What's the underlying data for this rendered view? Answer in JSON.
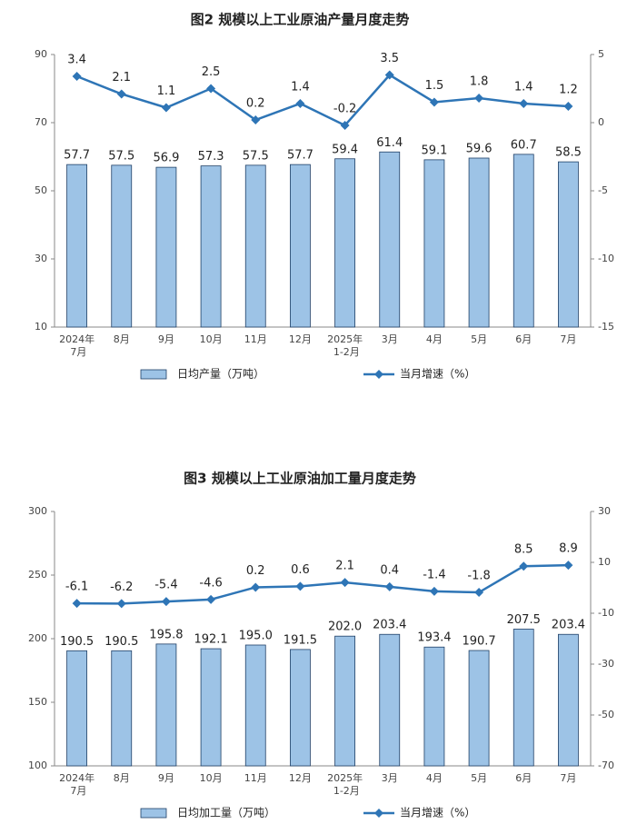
{
  "chart_data": [
    {
      "type": "bar",
      "title": "图2  规模以上工业原油产量月度走势",
      "categories": [
        "2024年\n7月",
        "8月",
        "9月",
        "10月",
        "11月",
        "12月",
        "2025年\n1-2月",
        "3月",
        "4月",
        "5月",
        "6月",
        "7月"
      ],
      "series": [
        {
          "name": "日均产量（万吨）",
          "type": "bar",
          "color": "#9dc3e6",
          "values": [
            57.7,
            57.5,
            56.9,
            57.3,
            57.5,
            57.7,
            59.4,
            61.4,
            59.1,
            59.6,
            60.7,
            58.5
          ]
        },
        {
          "name": "当月增速（%）",
          "type": "line",
          "axis": "y2",
          "color": "#2e75b6",
          "values": [
            3.4,
            2.1,
            1.1,
            2.5,
            0.2,
            1.4,
            -0.2,
            3.5,
            1.5,
            1.8,
            1.4,
            1.2
          ]
        }
      ],
      "ylim": [
        10,
        90
      ],
      "yticks": [
        10,
        30,
        50,
        70,
        90
      ],
      "y2lim": [
        -15,
        5
      ],
      "y2ticks": [
        -15,
        -10,
        -5,
        0,
        5
      ]
    },
    {
      "type": "bar",
      "title": "图3  规模以上工业原油加工量月度走势",
      "categories": [
        "2024年\n7月",
        "8月",
        "9月",
        "10月",
        "11月",
        "12月",
        "2025年\n1-2月",
        "3月",
        "4月",
        "5月",
        "6月",
        "7月"
      ],
      "series": [
        {
          "name": "日均加工量（万吨）",
          "type": "bar",
          "color": "#9dc3e6",
          "values": [
            190.5,
            190.5,
            195.8,
            192.1,
            195,
            191.5,
            202,
            203.4,
            193.4,
            190.7,
            207.5,
            203.4
          ],
          "value_labels": [
            "190.5",
            "190.5",
            "195.8",
            "192.1",
            "195.0",
            "191.5",
            "202.0",
            "203.4",
            "193.4",
            "190.7",
            "207.5",
            "203.4"
          ]
        },
        {
          "name": "当月增速（%）",
          "type": "line",
          "axis": "y2",
          "color": "#2e75b6",
          "values": [
            -6.1,
            -6.2,
            -5.4,
            -4.6,
            0.2,
            0.6,
            2.1,
            0.4,
            -1.4,
            -1.8,
            8.5,
            8.9
          ]
        }
      ],
      "ylim": [
        100,
        300
      ],
      "yticks": [
        100,
        150,
        200,
        250,
        300
      ],
      "y2lim": [
        -70,
        30
      ],
      "y2ticks": [
        -70,
        -50,
        -30,
        -10,
        10,
        30
      ]
    }
  ]
}
